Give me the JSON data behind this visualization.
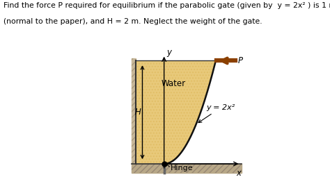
{
  "title_line1": "Find the force P required for equilibrium if the parabolic gate (given by  y = 2x² ) is 1 m wide",
  "title_line2": "(normal to the paper), and H = 2 m. Neglect the weight of the gate.",
  "water_fill_color": "#e8c97a",
  "parabola_color": "#111111",
  "parabola_lw": 1.8,
  "x_axis_label": "x",
  "y_axis_label": "y",
  "water_label": "Water",
  "curve_label": "y = 2x²",
  "arrow_color": "#8b4000",
  "P_label": "P",
  "hinge_label": "Hinge",
  "H_label": "H",
  "figsize": [
    4.74,
    2.65
  ],
  "dpi": 100,
  "title_fontsize": 7.8,
  "text_fontsize": 8.5
}
